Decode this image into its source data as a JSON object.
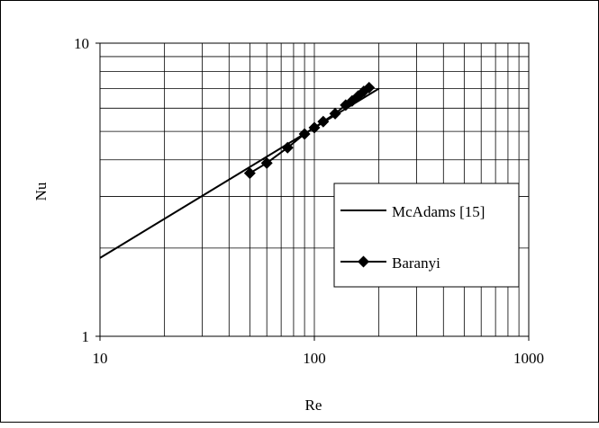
{
  "chart_data": {
    "type": "line",
    "xscale": "log",
    "yscale": "log",
    "xlim": [
      10,
      1000
    ],
    "ylim": [
      1,
      10
    ],
    "xlabel": "Re",
    "ylabel": "Nu",
    "x_tick_labels": [
      "10",
      "100",
      "1000"
    ],
    "y_tick_labels": [
      "1",
      "10"
    ],
    "grid": true,
    "legend_position": "center-right",
    "series": [
      {
        "name": "McAdams [15]",
        "style": "line",
        "color": "#000000",
        "x": [
          10,
          200
        ],
        "y": [
          1.85,
          7.0
        ]
      },
      {
        "name": "Baranyi",
        "style": "line-markers",
        "marker": "diamond",
        "color": "#000000",
        "x": [
          50,
          60,
          75,
          90,
          100,
          110,
          125,
          140,
          150,
          160,
          170,
          180
        ],
        "y": [
          3.6,
          3.9,
          4.4,
          4.9,
          5.15,
          5.4,
          5.75,
          6.15,
          6.35,
          6.6,
          6.85,
          7.05
        ]
      }
    ]
  }
}
